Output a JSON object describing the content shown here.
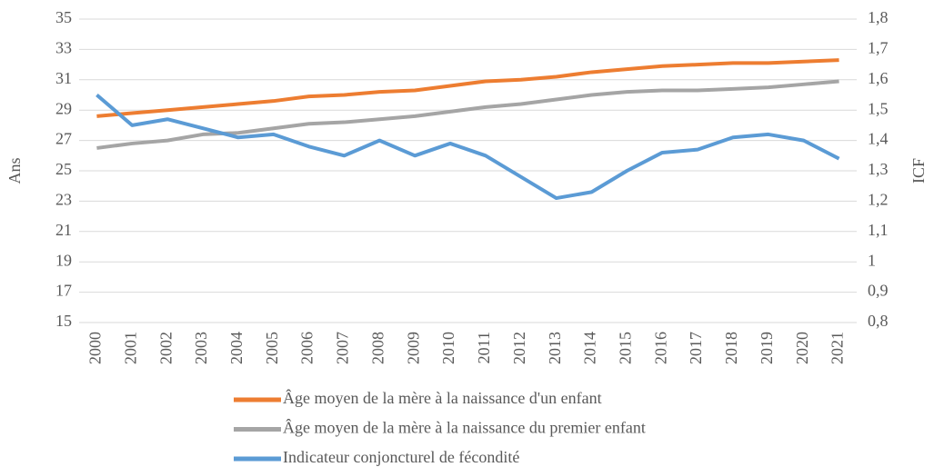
{
  "chart_data": {
    "type": "line",
    "y_label": "Ans",
    "y2_label": "ICF",
    "categories": [
      "2000",
      "2001",
      "2002",
      "2003",
      "2004",
      "2005",
      "2006",
      "2007",
      "2008",
      "2009",
      "2010",
      "2011",
      "2012",
      "2013",
      "2014",
      "2015",
      "2016",
      "2017",
      "2018",
      "2019",
      "2020",
      "2021"
    ],
    "ylim": [
      15,
      35
    ],
    "yticks": [
      15,
      17,
      19,
      21,
      23,
      25,
      27,
      29,
      31,
      33,
      35
    ],
    "y2lim": [
      0.8,
      1.8
    ],
    "y2ticks": [
      {
        "value": 0.8,
        "label": "0,8"
      },
      {
        "value": 0.9,
        "label": "0,9"
      },
      1,
      {
        "value": 1.1,
        "label": "1,1"
      },
      {
        "value": 1.2,
        "label": "1,2"
      },
      {
        "value": 1.3,
        "label": "1,3"
      },
      {
        "value": 1.4,
        "label": "1,4"
      },
      {
        "value": 1.5,
        "label": "1,5"
      },
      {
        "value": 1.6,
        "label": "1,6"
      },
      {
        "value": 1.7,
        "label": "1,7"
      },
      {
        "value": 1.8,
        "label": "1,8"
      }
    ],
    "grid": true,
    "legend": "bottom",
    "series": [
      {
        "name": "Âge moyen de la mère à la naissance d'un enfant",
        "color": "#ed7d31",
        "values": [
          28.6,
          28.8,
          29.0,
          29.2,
          29.4,
          29.6,
          29.9,
          30.0,
          30.2,
          30.3,
          30.6,
          30.9,
          31.0,
          31.2,
          31.5,
          31.7,
          31.9,
          32.0,
          32.1,
          32.1,
          32.2,
          32.3
        ]
      },
      {
        "name": "Âge moyen de la mère à la naissance du premier enfant",
        "color": "#a5a5a5",
        "values": [
          26.5,
          26.8,
          27.0,
          27.4,
          27.5,
          27.8,
          28.1,
          28.2,
          28.4,
          28.6,
          28.9,
          29.2,
          29.4,
          29.7,
          30.0,
          30.2,
          30.3,
          30.3,
          30.4,
          30.5,
          30.7,
          30.9
        ]
      },
      {
        "name": "Indicateur conjoncturel de fécondité",
        "color": "#5b9bd5",
        "axis": "y2",
        "values": [
          1.55,
          1.45,
          1.47,
          1.44,
          1.41,
          1.42,
          1.38,
          1.35,
          1.4,
          1.35,
          1.39,
          1.35,
          1.28,
          1.21,
          1.23,
          1.3,
          1.36,
          1.37,
          1.41,
          1.42,
          1.4,
          1.34
        ]
      }
    ]
  }
}
